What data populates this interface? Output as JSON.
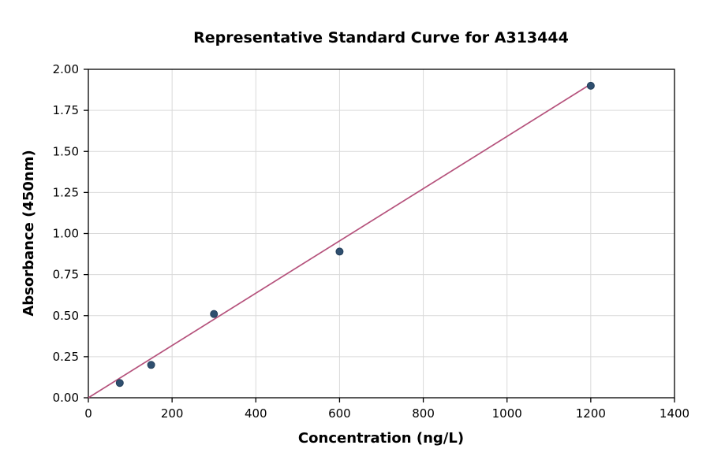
{
  "chart_data": {
    "type": "scatter",
    "title": "Representative Standard Curve for A313444",
    "xlabel": "Concentration (ng/L)",
    "ylabel": "Absorbance (450nm)",
    "xlim": [
      0,
      1400
    ],
    "ylim": [
      0,
      2.0
    ],
    "x_ticks": [
      0,
      200,
      400,
      600,
      800,
      1000,
      1200,
      1400
    ],
    "x_tick_labels": [
      "0",
      "200",
      "400",
      "600",
      "800",
      "1000",
      "1200",
      "1400"
    ],
    "y_ticks": [
      0,
      0.25,
      0.5,
      0.75,
      1.0,
      1.25,
      1.5,
      1.75,
      2.0
    ],
    "y_tick_labels": [
      "0.00",
      "0.25",
      "0.50",
      "0.75",
      "1.00",
      "1.25",
      "1.50",
      "1.75",
      "2.00"
    ],
    "grid": true,
    "legend": "none",
    "points": {
      "x": [
        75,
        150,
        300,
        600,
        1200
      ],
      "y": [
        0.09,
        0.2,
        0.51,
        0.89,
        1.9
      ]
    },
    "trend_line": {
      "x": [
        0,
        1200
      ],
      "y": [
        0.0,
        1.91
      ]
    },
    "colors": {
      "point": "#2f4f6f",
      "point_edge": "#243f5a",
      "line": "#b5527c",
      "grid": "#d9d9d9",
      "axis": "#000000",
      "background": "#ffffff"
    }
  }
}
